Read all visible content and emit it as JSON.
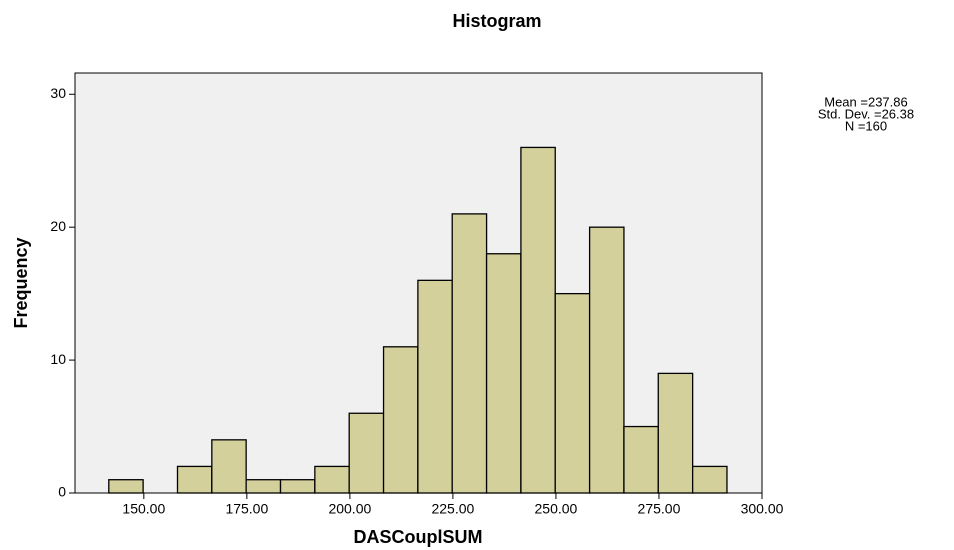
{
  "chart_data": {
    "type": "histogram",
    "title": "Histogram",
    "x_label": "DASCouplSUM",
    "y_label": "Frequency",
    "stats": [
      "Mean =237.86",
      "Std. Dev. =26.38",
      "N =160"
    ],
    "bins": [
      141.5,
      149.83,
      158.17,
      166.5,
      174.83,
      183.17,
      191.5,
      199.83,
      208.17,
      216.5,
      224.83,
      233.17,
      241.5,
      249.83,
      258.17,
      266.5,
      274.83,
      283.17,
      291.5
    ],
    "values": [
      1,
      0,
      2,
      4,
      1,
      1,
      2,
      6,
      11,
      16,
      21,
      18,
      26,
      15,
      20,
      5,
      9,
      2
    ],
    "color": "#d4d09b",
    "xlim": [
      133.3,
      300
    ],
    "ylim": [
      0,
      31.6
    ],
    "xticks": [
      {
        "value": 150,
        "label": "150.00"
      },
      {
        "value": 175,
        "label": "175.00"
      },
      {
        "value": 200,
        "label": "200.00"
      },
      {
        "value": 225,
        "label": "225.00"
      },
      {
        "value": 250,
        "label": "250.00"
      },
      {
        "value": 275,
        "label": "275.00"
      },
      {
        "value": 300,
        "label": "300.00"
      }
    ],
    "yticks": [
      0,
      10,
      20,
      30
    ]
  }
}
